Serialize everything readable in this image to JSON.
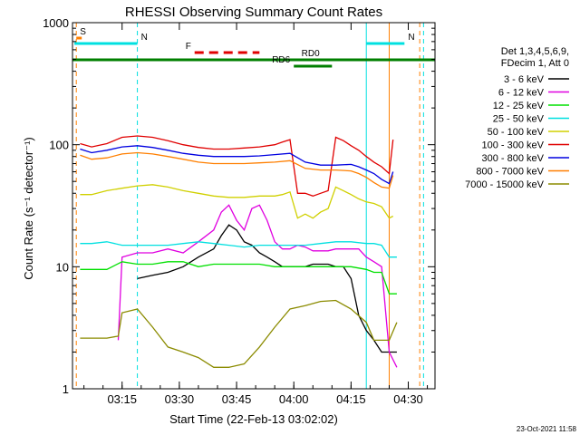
{
  "chart_data": {
    "type": "line",
    "title": "RHESSI Observing Summary Count Rates",
    "ylabel": "Count Rate (s⁻¹ detector⁻¹)",
    "xlabel": "Start Time (22-Feb-13 03:02:02)",
    "x_unit": "minutes after 03:02:02",
    "x_range": [
      0,
      95
    ],
    "y_scale": "log",
    "ylim": [
      1,
      1000
    ],
    "x_ticks": [
      {
        "value": 13,
        "label": "03:15"
      },
      {
        "value": 28,
        "label": "03:30"
      },
      {
        "value": 43,
        "label": "03:45"
      },
      {
        "value": 58,
        "label": "04:00"
      },
      {
        "value": 73,
        "label": "04:15"
      },
      {
        "value": 88,
        "label": "04:30"
      }
    ],
    "y_ticks": [
      {
        "value": 1,
        "label": "1"
      },
      {
        "value": 10,
        "label": "10"
      },
      {
        "value": 100,
        "label": "100"
      },
      {
        "value": 1000,
        "label": "1000"
      }
    ],
    "legend_header": [
      "Det 1,3,4,5,6,9,",
      "FDecim 1, Att 0"
    ],
    "series": [
      {
        "name": "3 - 6 keV",
        "color": "#000000",
        "x": [
          1,
          5,
          9,
          13,
          17,
          21,
          25,
          29,
          33,
          37,
          39,
          41,
          43,
          45,
          47,
          49,
          51,
          53,
          55,
          57,
          59,
          61,
          63,
          65,
          67,
          69,
          71,
          73,
          75,
          77,
          79,
          81,
          83,
          85,
          86
        ],
        "values": [
          null,
          null,
          null,
          null,
          8,
          8.5,
          9,
          10,
          12,
          14,
          18,
          22,
          20,
          16,
          15,
          13,
          12,
          11,
          10,
          10,
          10,
          10,
          10.5,
          10.5,
          10.5,
          10,
          10,
          8,
          4,
          3,
          2.5,
          2,
          2,
          2,
          null
        ]
      },
      {
        "name": "6 - 12 keV",
        "color": "#e000e0",
        "x": [
          1,
          5,
          9,
          12,
          13,
          17,
          21,
          25,
          29,
          33,
          37,
          39,
          41,
          43,
          45,
          47,
          49,
          51,
          53,
          55,
          57,
          59,
          61,
          63,
          65,
          67,
          69,
          71,
          73,
          75,
          77,
          79,
          81,
          83,
          85,
          86
        ],
        "values": [
          null,
          null,
          null,
          2.5,
          12,
          13,
          13,
          14,
          13,
          16,
          20,
          28,
          32,
          24,
          20,
          30,
          32,
          24,
          16,
          14,
          14,
          15,
          14.5,
          13.5,
          13.5,
          13.5,
          14,
          14,
          14,
          14,
          12,
          11,
          10,
          2,
          1.5,
          null
        ]
      },
      {
        "name": "12 - 25 keV",
        "color": "#00e000",
        "x": [
          1,
          2,
          5,
          9,
          13,
          17,
          21,
          25,
          29,
          33,
          37,
          41,
          45,
          49,
          53,
          57,
          61,
          65,
          69,
          73,
          77,
          79,
          81,
          83,
          85,
          86
        ],
        "values": [
          null,
          9.5,
          9.5,
          9.5,
          11,
          10.5,
          10.5,
          11,
          11,
          10,
          10.5,
          10.5,
          10.5,
          10.5,
          10,
          10,
          10,
          10,
          10,
          10,
          9.5,
          9,
          9,
          6,
          6,
          null
        ]
      },
      {
        "name": "25 - 50 keV",
        "color": "#00e0e0",
        "x": [
          1,
          2,
          5,
          9,
          13,
          17,
          21,
          25,
          29,
          33,
          37,
          41,
          45,
          49,
          53,
          57,
          61,
          65,
          69,
          73,
          77,
          79,
          81,
          83,
          85,
          86
        ],
        "values": [
          null,
          15.5,
          15.5,
          16,
          15,
          15,
          15,
          15,
          15.5,
          16,
          15.5,
          15,
          14.5,
          15,
          15,
          15,
          15,
          15.5,
          16,
          16,
          15.5,
          15.5,
          15,
          12,
          12,
          null
        ]
      },
      {
        "name": "50 - 100 keV",
        "color": "#d0d000",
        "x": [
          1,
          2,
          5,
          9,
          13,
          17,
          21,
          25,
          29,
          33,
          37,
          41,
          45,
          49,
          53,
          55,
          57,
          59,
          61,
          63,
          65,
          67,
          69,
          71,
          73,
          75,
          77,
          79,
          81,
          83,
          84,
          86
        ],
        "values": [
          null,
          39,
          39,
          42,
          44,
          46,
          47,
          45,
          42,
          40,
          38,
          37,
          37,
          38,
          38,
          39,
          41,
          25,
          27,
          25,
          28,
          30,
          45,
          42,
          39,
          36,
          34,
          33,
          31,
          25,
          26,
          null
        ]
      },
      {
        "name": "100 - 300 keV",
        "color": "#e00000",
        "x": [
          1,
          2,
          5,
          9,
          13,
          17,
          21,
          25,
          29,
          33,
          37,
          41,
          45,
          49,
          53,
          55,
          57,
          59,
          61,
          63,
          65,
          67,
          69,
          71,
          73,
          75,
          77,
          79,
          81,
          83,
          84,
          86
        ],
        "values": [
          null,
          102,
          96,
          102,
          115,
          118,
          115,
          108,
          100,
          95,
          92,
          92,
          94,
          96,
          100,
          105,
          110,
          40,
          40,
          38,
          40,
          42,
          115,
          108,
          98,
          90,
          80,
          72,
          66,
          58,
          110,
          null
        ]
      },
      {
        "name": "300 - 800 keV",
        "color": "#0000e0",
        "x": [
          1,
          2,
          5,
          9,
          13,
          17,
          21,
          25,
          29,
          33,
          37,
          41,
          45,
          49,
          53,
          57,
          61,
          65,
          69,
          73,
          75,
          77,
          79,
          81,
          83,
          84,
          86
        ],
        "values": [
          null,
          92,
          86,
          90,
          96,
          98,
          95,
          90,
          85,
          82,
          80,
          80,
          80,
          81,
          83,
          85,
          72,
          68,
          68,
          69,
          66,
          62,
          58,
          52,
          48,
          60,
          null
        ]
      },
      {
        "name": "800 - 7000 keV",
        "color": "#ff7f00",
        "x": [
          1,
          2,
          5,
          9,
          13,
          17,
          21,
          25,
          29,
          33,
          37,
          41,
          45,
          49,
          53,
          57,
          61,
          65,
          69,
          73,
          75,
          77,
          79,
          81,
          83,
          84,
          86
        ],
        "values": [
          null,
          82,
          76,
          78,
          84,
          86,
          84,
          80,
          76,
          72,
          70,
          70,
          70,
          71,
          72,
          74,
          64,
          62,
          62,
          61,
          58,
          54,
          49,
          45,
          44,
          56,
          null
        ]
      },
      {
        "name": "7000 - 15000 keV",
        "color": "#8b8b00",
        "x": [
          1,
          2,
          5,
          9,
          12,
          13,
          17,
          21,
          25,
          29,
          33,
          37,
          41,
          45,
          49,
          53,
          57,
          61,
          65,
          69,
          73,
          77,
          79,
          81,
          83,
          85,
          86
        ],
        "values": [
          null,
          2.6,
          2.6,
          2.6,
          2.7,
          4.2,
          4.5,
          3.2,
          2.2,
          2.0,
          1.8,
          1.5,
          1.5,
          1.6,
          2.2,
          3.2,
          4.5,
          4.8,
          5.2,
          5.3,
          4.5,
          3.5,
          2.5,
          2.5,
          2.5,
          3.5,
          null
        ]
      }
    ],
    "flag_bars": [
      {
        "label": "S",
        "color": "#ff7f00",
        "x_start": 1,
        "x_end": 1
      },
      {
        "label": "N",
        "color": "#00e0e0",
        "x_start": 0.5,
        "x_end": 17
      },
      {
        "label": "N",
        "color": "#00e0e0",
        "x_start": 77,
        "x_end": 87
      },
      {
        "label": "F",
        "color": "#e00000",
        "x_start": 32,
        "x_end": 49
      },
      {
        "label": "RD0",
        "color": "#007f00",
        "x_start": 0,
        "x_end": 95
      },
      {
        "label": "RD6",
        "color": "#007f00",
        "x_start": 58,
        "x_end": 68
      }
    ],
    "vertical_lines": [
      {
        "x": 17,
        "color": "#00e0e0",
        "dashed": true
      },
      {
        "x": 77,
        "color": "#00e0e0",
        "dashed": false
      },
      {
        "x": 83,
        "color": "#ff7f00",
        "dashed": false
      },
      {
        "x": 92,
        "color": "#00e0e0",
        "dashed": true
      },
      {
        "x": 91,
        "color": "#ff7f00",
        "dashed": true
      },
      {
        "x": 1,
        "color": "#ff7f00",
        "dashed": true
      }
    ],
    "grid": false,
    "legend_position": "right"
  },
  "footer_timestamp": "23-Oct-2021 11:58"
}
